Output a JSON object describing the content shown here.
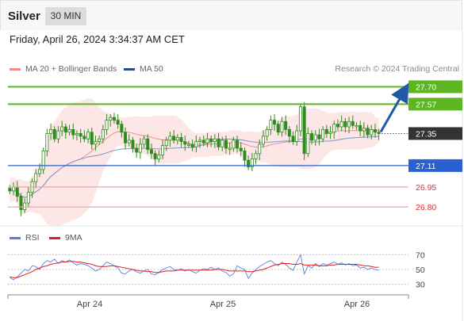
{
  "header": {
    "title": "Silver",
    "timeframe": "30 MIN",
    "datetime": "Friday, April 26, 2024 3:34:37 AM CET"
  },
  "legend": {
    "ma20": {
      "label": "MA 20 + Bollinger Bands",
      "color": "#f28c8c"
    },
    "ma50": {
      "label": "MA 50",
      "color": "#2b4a8b"
    },
    "copyright": "Research © 2024 Trading Central"
  },
  "rsi_legend": {
    "rsi": {
      "label": "RSI",
      "color": "#5b7fd9"
    },
    "ma9": {
      "label": "9MA",
      "color": "#e02020"
    }
  },
  "colors": {
    "resistance": "#5cb521",
    "support_blue": "#2a60d0",
    "support_red": "#f4a3a3",
    "support_red_text": "#e03030",
    "current_box": "#333333",
    "arrow": "#1f5aa6",
    "band_fill": "#fde2e2",
    "candle": "#2e8b1e"
  },
  "chart_data": {
    "type": "candlestick",
    "x_tick_labels": [
      "Apr 24",
      "Apr 25",
      "Apr 26"
    ],
    "price_ylim": [
      26.7,
      27.78
    ],
    "close_series": [
      26.92,
      26.95,
      26.88,
      26.78,
      26.83,
      26.91,
      26.99,
      27.05,
      27.08,
      27.22,
      27.35,
      27.38,
      27.31,
      27.37,
      27.4,
      27.36,
      27.38,
      27.34,
      27.35,
      27.33,
      27.31,
      27.36,
      27.27,
      27.29,
      27.31,
      27.38,
      27.45,
      27.47,
      27.45,
      27.42,
      27.36,
      27.28,
      27.3,
      27.24,
      27.21,
      27.27,
      27.31,
      27.23,
      27.2,
      27.16,
      27.19,
      27.26,
      27.3,
      27.33,
      27.3,
      27.32,
      27.29,
      27.27,
      27.27,
      27.25,
      27.29,
      27.3,
      27.28,
      27.31,
      27.29,
      27.31,
      27.25,
      27.3,
      27.24,
      27.24,
      27.3,
      27.24,
      27.22,
      27.15,
      27.1,
      27.16,
      27.2,
      27.27,
      27.33,
      27.38,
      27.45,
      27.42,
      27.36,
      27.44,
      27.38,
      27.33,
      27.29,
      27.37,
      27.55,
      27.2,
      27.35,
      27.3,
      27.34,
      27.31,
      27.38,
      27.35,
      27.36,
      27.42,
      27.4,
      27.44,
      27.4,
      27.44,
      27.41,
      27.41,
      27.37,
      27.39,
      27.34,
      27.38,
      27.36,
      27.35
    ],
    "levels": [
      {
        "value": 27.7,
        "label": "27.70",
        "kind": "resistance"
      },
      {
        "value": 27.57,
        "label": "27.57",
        "kind": "resistance"
      },
      {
        "value": 27.35,
        "label": "27.35",
        "kind": "current"
      },
      {
        "value": 27.11,
        "label": "27.11",
        "kind": "support_blue"
      },
      {
        "value": 26.95,
        "label": "26.95",
        "kind": "support_red"
      },
      {
        "value": 26.8,
        "label": "26.80",
        "kind": "support_red"
      }
    ],
    "rsi": {
      "ylim": [
        20,
        80
      ],
      "tick_labels": [
        70,
        50,
        30
      ],
      "values": [
        39,
        36,
        40,
        45,
        50,
        48,
        55,
        54,
        50,
        58,
        62,
        60,
        64,
        58,
        62,
        60,
        63,
        59,
        56,
        58,
        57,
        55,
        52,
        48,
        50,
        55,
        60,
        58,
        55,
        52,
        45,
        44,
        48,
        50,
        47,
        45,
        48,
        50,
        44,
        43,
        46,
        50,
        52,
        54,
        50,
        49,
        51,
        48,
        50,
        47,
        45,
        49,
        51,
        50,
        53,
        50,
        52,
        48,
        46,
        41,
        44,
        55,
        52,
        50,
        38,
        45,
        50,
        54,
        57,
        60,
        62,
        58,
        55,
        60,
        57,
        52,
        49,
        60,
        70,
        44,
        55,
        52,
        58,
        54,
        58,
        56,
        58,
        60,
        57,
        59,
        56,
        58,
        55,
        56,
        52,
        53,
        50,
        52,
        50,
        49
      ],
      "ma9": [
        40,
        39,
        39,
        41,
        43,
        45,
        47,
        50,
        52,
        54,
        55,
        57,
        58,
        59,
        60,
        60,
        61,
        61,
        60,
        60,
        59,
        58,
        57,
        55,
        54,
        54,
        54,
        55,
        55,
        54,
        53,
        52,
        51,
        50,
        49,
        48,
        48,
        47,
        47,
        46,
        46,
        47,
        48,
        48,
        48,
        49,
        49,
        49,
        49,
        49,
        49,
        49,
        49,
        49,
        49,
        50,
        50,
        50,
        49,
        48,
        48,
        48,
        48,
        48,
        47,
        47,
        48,
        49,
        50,
        52,
        54,
        56,
        57,
        58,
        58,
        58,
        57,
        57,
        58,
        56,
        56,
        56,
        56,
        55,
        55,
        55,
        56,
        56,
        57,
        57,
        57,
        57,
        57,
        57,
        56,
        55,
        55,
        54,
        53,
        53
      ]
    }
  }
}
